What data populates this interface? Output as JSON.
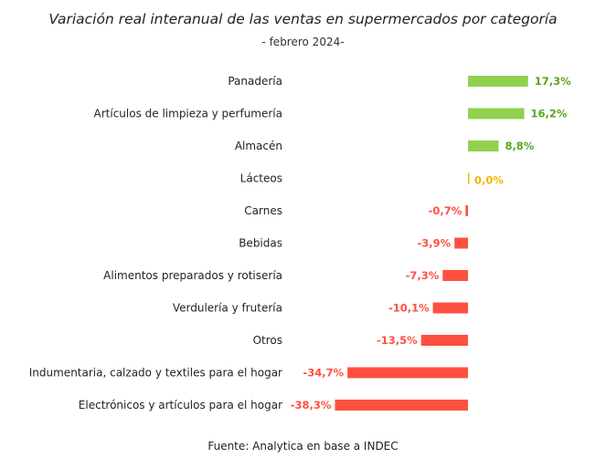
{
  "chart_data": {
    "type": "bar",
    "orientation": "horizontal",
    "title": "Variación real interanual de las ventas en supermercados por categoría",
    "subtitle": "- febrero 2024-",
    "source": "Fuente: Analytica en base a INDEC",
    "categories": [
      "Panadería",
      "Artículos de limpieza y perfumería",
      "Almacén",
      "Lácteos",
      "Carnes",
      "Bebidas",
      "Alimentos preparados y rotisería",
      "Verdulería y frutería",
      "Otros",
      "Indumentaria, calzado y textiles para el hogar",
      "Electrónicos y artículos para el hogar"
    ],
    "values": [
      17.3,
      16.2,
      8.8,
      0.0,
      -0.7,
      -3.9,
      -7.3,
      -10.1,
      -13.5,
      -34.7,
      -38.3
    ],
    "labels": [
      "17,3%",
      "16,2%",
      "8,8%",
      "0,0%",
      "-0,7%",
      "-3,9%",
      "-7,3%",
      "-10,1%",
      "-13,5%",
      "-34,7%",
      "-38,3%"
    ],
    "colors": {
      "positive": "#92d050",
      "zero": "#f4b400",
      "negative": "#ff5040",
      "positive_label": "#5aa51e",
      "zero_label": "#f4b400",
      "negative_label": "#ff5040"
    },
    "legend": "none",
    "grid": false
  }
}
